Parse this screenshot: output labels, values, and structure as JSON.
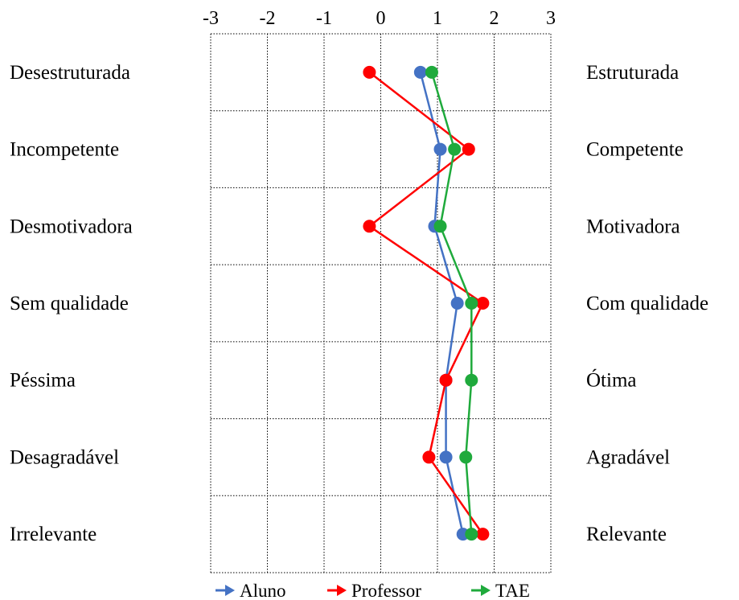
{
  "chart_data": {
    "type": "line",
    "title": "",
    "xlabel": "",
    "ylabel": "",
    "xlim": [
      -3,
      3
    ],
    "x_ticks": [
      "-3",
      "-2",
      "-1",
      "0",
      "1",
      "2",
      "3"
    ],
    "x_tick_values": [
      -3,
      -2,
      -1,
      0,
      1,
      2,
      3
    ],
    "grid": true,
    "legend_position": "bottom",
    "left_labels": [
      "Desestruturada",
      "Incompetente",
      "Desmotivadora",
      "Sem qualidade",
      "Péssima",
      "Desagradável",
      "Irrelevante"
    ],
    "right_labels": [
      "Estruturada",
      "Competente",
      "Motivadora",
      "Com qualidade",
      "Ótima",
      "Agradável",
      "Relevante"
    ],
    "series": [
      {
        "name": "Aluno",
        "color": "#4472C4",
        "values": [
          0.7,
          1.05,
          0.95,
          1.35,
          1.15,
          1.15,
          1.45
        ]
      },
      {
        "name": "Professor",
        "color": "#FF0000",
        "values": [
          -0.2,
          1.55,
          -0.2,
          1.8,
          1.15,
          0.85,
          1.8
        ]
      },
      {
        "name": "TAE",
        "color": "#1FAA3C",
        "values": [
          0.9,
          1.3,
          1.05,
          1.6,
          1.6,
          1.5,
          1.6
        ]
      }
    ]
  }
}
